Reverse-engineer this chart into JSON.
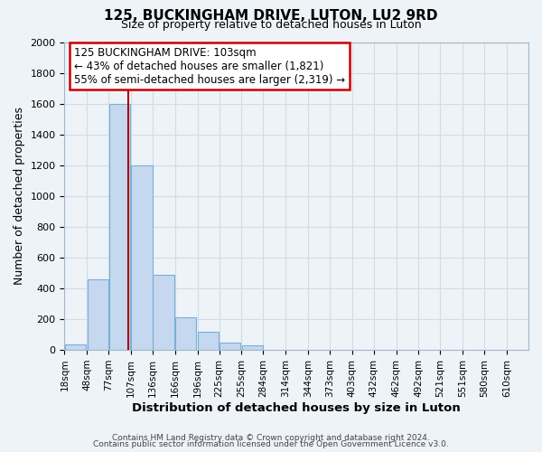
{
  "title": "125, BUCKINGHAM DRIVE, LUTON, LU2 9RD",
  "subtitle": "Size of property relative to detached houses in Luton",
  "xlabel": "Distribution of detached houses by size in Luton",
  "ylabel": "Number of detached properties",
  "bar_left_edges": [
    18,
    48,
    77,
    107,
    136,
    166,
    196,
    225,
    255,
    284,
    314,
    344,
    373,
    403,
    432,
    462,
    492,
    521,
    551,
    580
  ],
  "bar_heights": [
    35,
    460,
    1600,
    1200,
    490,
    210,
    120,
    45,
    30,
    0,
    0,
    0,
    0,
    0,
    0,
    0,
    0,
    0,
    0,
    0
  ],
  "bin_width": 29,
  "bar_color": "#c5d8f0",
  "bar_edgecolor": "#7bafd4",
  "property_line_x": 103,
  "property_line_color": "#aa0000",
  "annotation_text": "125 BUCKINGHAM DRIVE: 103sqm\n← 43% of detached houses are smaller (1,821)\n55% of semi-detached houses are larger (2,319) →",
  "annotation_box_facecolor": "#ffffff",
  "annotation_box_edgecolor": "#cc0000",
  "xlim": [
    18,
    639
  ],
  "ylim": [
    0,
    2000
  ],
  "yticks": [
    0,
    200,
    400,
    600,
    800,
    1000,
    1200,
    1400,
    1600,
    1800,
    2000
  ],
  "xtick_labels": [
    "18sqm",
    "48sqm",
    "77sqm",
    "107sqm",
    "136sqm",
    "166sqm",
    "196sqm",
    "225sqm",
    "255sqm",
    "284sqm",
    "314sqm",
    "344sqm",
    "373sqm",
    "403sqm",
    "432sqm",
    "462sqm",
    "492sqm",
    "521sqm",
    "551sqm",
    "580sqm",
    "610sqm"
  ],
  "xtick_positions": [
    18,
    48,
    77,
    107,
    136,
    166,
    196,
    225,
    255,
    284,
    314,
    344,
    373,
    403,
    432,
    462,
    492,
    521,
    551,
    580,
    610
  ],
  "grid_color": "#d0dce8",
  "background_color": "#eef3f8",
  "footer_line1": "Contains HM Land Registry data © Crown copyright and database right 2024.",
  "footer_line2": "Contains public sector information licensed under the Open Government Licence v3.0."
}
